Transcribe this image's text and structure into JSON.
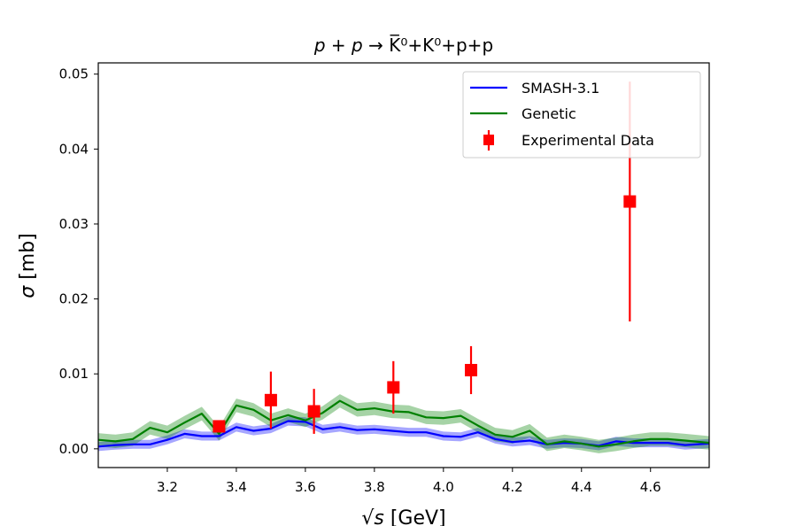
{
  "chart_data": {
    "type": "line",
    "title": "p + p → K̅⁰+K⁰+p+p",
    "title_math": "p + p",
    "title_arrow": " → ",
    "title_rest": "K̅⁰+K⁰+p+p",
    "xlabel": "√s [GeV]",
    "xlabel_math": "√s",
    "xlabel_unit": " [GeV]",
    "ylabel": "σ [mb]",
    "ylabel_math": "σ",
    "ylabel_unit": " [mb]",
    "xlim": [
      3.0,
      4.77
    ],
    "ylim": [
      -0.0025,
      0.0515
    ],
    "xticks": [
      3.2,
      3.4,
      3.6,
      3.8,
      4.0,
      4.2,
      4.4,
      4.6
    ],
    "xtick_labels": [
      "3.2",
      "3.4",
      "3.6",
      "3.8",
      "4.0",
      "4.2",
      "4.4",
      "4.6"
    ],
    "yticks": [
      0.0,
      0.01,
      0.02,
      0.03,
      0.04,
      0.05
    ],
    "ytick_labels": [
      "0.00",
      "0.01",
      "0.02",
      "0.03",
      "0.04",
      "0.05"
    ],
    "legend_position": "top-right",
    "series": [
      {
        "name": "SMASH-3.1",
        "kind": "line",
        "color": "#0000ff",
        "x": [
          3.0,
          3.05,
          3.1,
          3.15,
          3.2,
          3.25,
          3.3,
          3.35,
          3.4,
          3.45,
          3.5,
          3.55,
          3.6,
          3.65,
          3.7,
          3.75,
          3.8,
          3.85,
          3.9,
          3.95,
          4.0,
          4.05,
          4.1,
          4.15,
          4.2,
          4.25,
          4.3,
          4.35,
          4.4,
          4.45,
          4.5,
          4.55,
          4.6,
          4.65,
          4.7,
          4.77
        ],
        "values": [
          0.0003,
          0.0005,
          0.0006,
          0.0006,
          0.0012,
          0.002,
          0.0017,
          0.0017,
          0.0029,
          0.0024,
          0.0027,
          0.0037,
          0.0036,
          0.0026,
          0.0029,
          0.0025,
          0.0026,
          0.0024,
          0.0022,
          0.0022,
          0.0017,
          0.0016,
          0.0022,
          0.0013,
          0.0009,
          0.0011,
          0.0006,
          0.0008,
          0.0007,
          0.0004,
          0.001,
          0.0008,
          0.0008,
          0.0008,
          0.0005,
          0.0007
        ],
        "band_width": 0.0006
      },
      {
        "name": "Genetic",
        "kind": "line",
        "color": "#008000",
        "x": [
          3.0,
          3.05,
          3.1,
          3.15,
          3.2,
          3.25,
          3.3,
          3.35,
          3.4,
          3.45,
          3.5,
          3.55,
          3.6,
          3.65,
          3.7,
          3.75,
          3.8,
          3.85,
          3.9,
          3.95,
          4.0,
          4.05,
          4.1,
          4.15,
          4.2,
          4.25,
          4.3,
          4.35,
          4.4,
          4.45,
          4.5,
          4.55,
          4.6,
          4.65,
          4.7,
          4.77
        ],
        "values": [
          0.0012,
          0.001,
          0.0013,
          0.0028,
          0.0022,
          0.0035,
          0.0047,
          0.002,
          0.0058,
          0.0052,
          0.0038,
          0.0045,
          0.0038,
          0.0048,
          0.0064,
          0.0052,
          0.0054,
          0.005,
          0.0049,
          0.0042,
          0.0041,
          0.0044,
          0.0031,
          0.0019,
          0.0016,
          0.0024,
          0.0006,
          0.001,
          0.0007,
          0.0003,
          0.0006,
          0.001,
          0.0013,
          0.0013,
          0.0011,
          0.0008
        ],
        "band_width": 0.0009
      },
      {
        "name": "Experimental Data",
        "kind": "errorbar",
        "color": "#ff0000",
        "x": [
          3.35,
          3.5,
          3.625,
          3.855,
          4.08,
          4.54
        ],
        "values": [
          0.003,
          0.0065,
          0.005,
          0.0082,
          0.0105,
          0.033
        ],
        "errors": [
          0.0005,
          0.0038,
          0.003,
          0.0035,
          0.0032,
          0.016
        ]
      }
    ]
  }
}
